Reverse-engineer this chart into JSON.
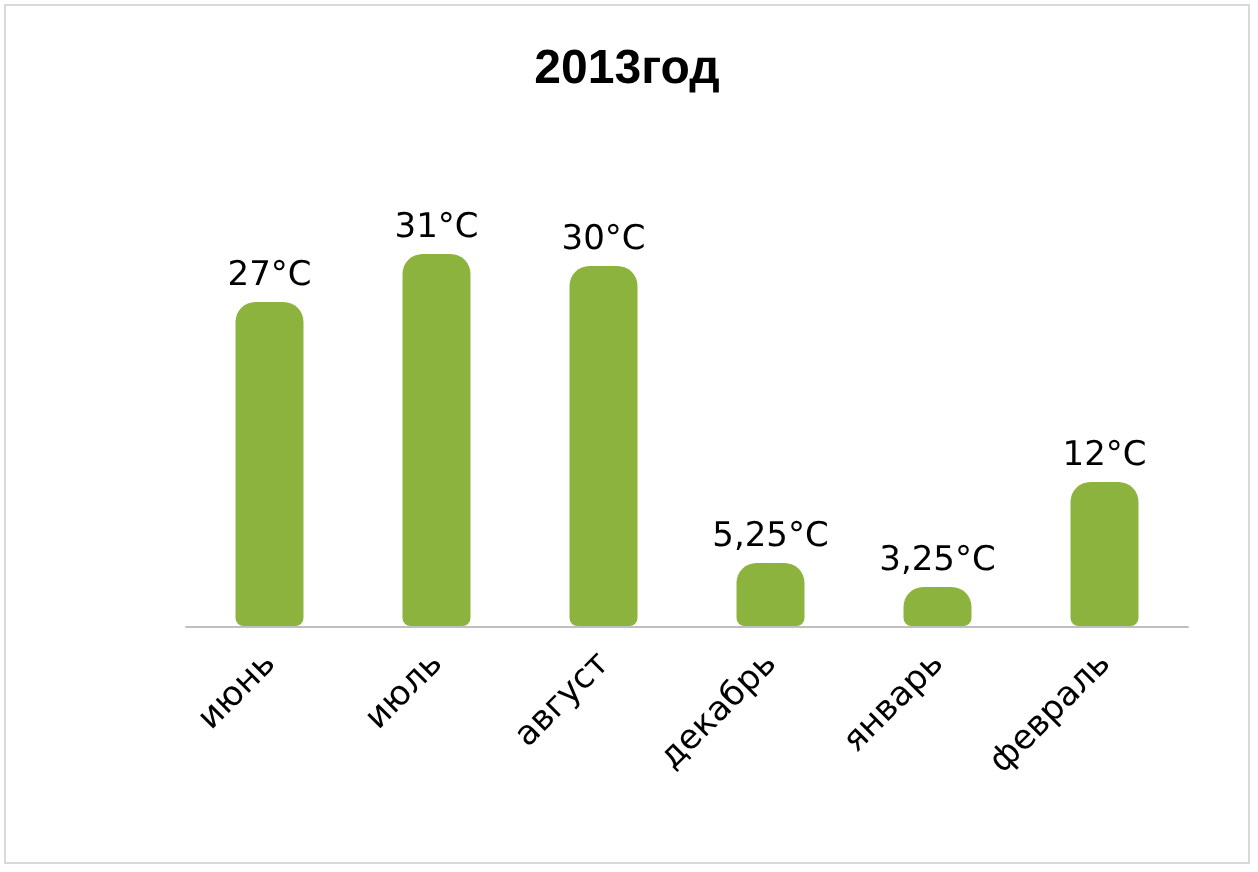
{
  "chart_data": {
    "type": "bar",
    "title": "2013год",
    "categories": [
      "июнь",
      "июль",
      "август",
      "декабрь",
      "январь",
      "февраль"
    ],
    "series": [
      {
        "color": "#8db33f",
        "values": [
          27,
          31,
          30,
          5.25,
          3.25,
          12
        ],
        "value_labels": [
          "27°C",
          "31°C",
          "30°C",
          "5,25°C",
          "3,25°C",
          "12°C"
        ]
      }
    ]
  }
}
